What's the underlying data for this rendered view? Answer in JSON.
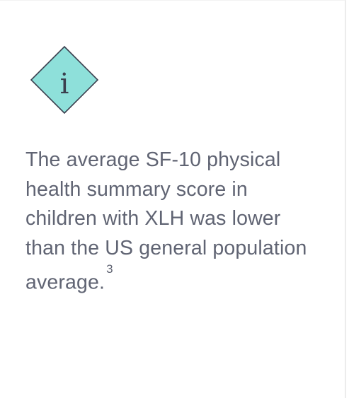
{
  "callout": {
    "icon": "info-icon",
    "icon_glyph": "i",
    "icon_fill_color": "#8ee0da",
    "icon_stroke_color": "#3b3f4e",
    "text": "The average SF-10 physical health summary score in children with XLH was lower than the US general population average.",
    "footnote": "3",
    "text_color": "#606473"
  }
}
